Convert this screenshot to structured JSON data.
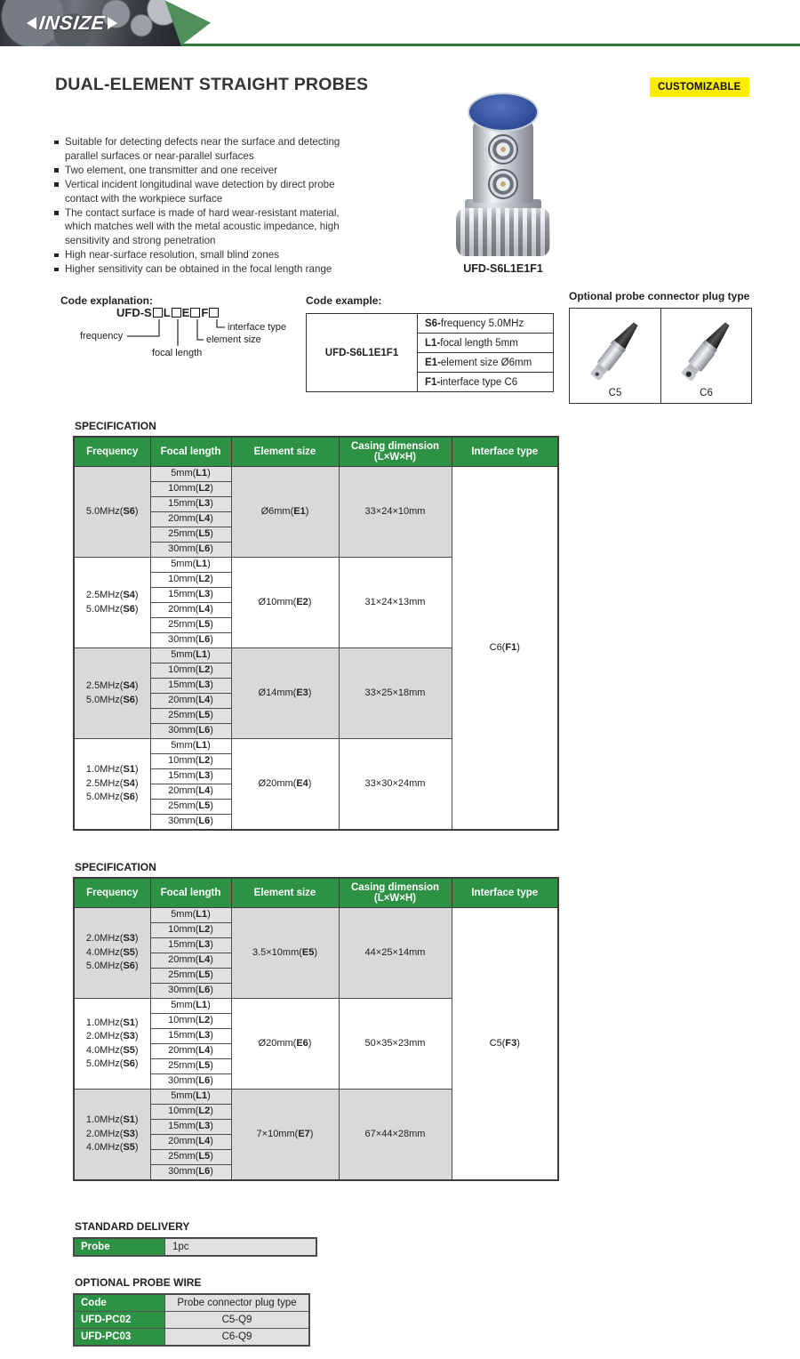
{
  "brand": {
    "logo_text": "INSIZE"
  },
  "page": {
    "title": "DUAL-ELEMENT STRAIGHT PROBES",
    "badge": "CUSTOMIZABLE"
  },
  "colors": {
    "table_header_green": "#2e9245",
    "header_band_green": "#4e8f5b",
    "rule_green": "#2c7a3a",
    "badge_yellow": "#fdee00",
    "shaded_cell_gray": "#d9d9d9"
  },
  "features": [
    "Suitable for detecting defects near the surface and detecting parallel surfaces or near-parallel surfaces",
    "Two element, one transmitter and one receiver",
    "Vertical incident longitudinal wave detection by direct probe contact with the workpiece surface",
    "The contact surface is made of hard wear-resistant material, which matches well with the metal acoustic impedance, high sensitivity and strong penetration",
    "High near-surface resolution, small blind zones",
    "Higher sensitivity can be obtained in the focal length range"
  ],
  "product": {
    "caption": "UFD-S6L1E1F1"
  },
  "code_explanation": {
    "label": "Code explanation:",
    "code_segments": [
      "UFD-S",
      "L",
      "E",
      "F"
    ],
    "legend": {
      "frequency": "frequency",
      "focal_length": "focal length",
      "element_size": "element size",
      "interface_type": "interface type"
    }
  },
  "code_example": {
    "label": "Code example:",
    "code": "UFD-S6L1E1F1",
    "items": [
      {
        "code": "S6",
        "desc": "frequency 5.0MHz"
      },
      {
        "code": "L1",
        "desc": "focal length 5mm"
      },
      {
        "code": "E1",
        "desc": "element size Ø6mm"
      },
      {
        "code": "F1",
        "desc": "interface type C6"
      }
    ]
  },
  "connector_plugs": {
    "title": "Optional probe connector plug type",
    "options": [
      {
        "label": "C5"
      },
      {
        "label": "C6"
      }
    ]
  },
  "spec1": {
    "label": "SPECIFICATION",
    "headers": [
      "Frequency",
      "Focal length",
      "Element size",
      "Casing dimension\n(L×W×H)",
      "Interface type"
    ],
    "focal_lengths": [
      "5mm(L1)",
      "10mm(L2)",
      "15mm(L3)",
      "20mm(L4)",
      "25mm(L5)",
      "30mm(L6)"
    ],
    "interface": "C6(F1)",
    "groups": [
      {
        "frequency": [
          "5.0MHz(S6)"
        ],
        "element": "Ø6mm(E1)",
        "casing": "33×24×10mm",
        "shaded": true
      },
      {
        "frequency": [
          "2.5MHz(S4)",
          "5.0MHz(S6)"
        ],
        "element": "Ø10mm(E2)",
        "casing": "31×24×13mm",
        "shaded": false
      },
      {
        "frequency": [
          "2.5MHz(S4)",
          "5.0MHz(S6)"
        ],
        "element": "Ø14mm(E3)",
        "casing": "33×25×18mm",
        "shaded": true
      },
      {
        "frequency": [
          "1.0MHz(S1)",
          "2.5MHz(S4)",
          "5.0MHz(S6)"
        ],
        "element": "Ø20mm(E4)",
        "casing": "33×30×24mm",
        "shaded": false
      }
    ]
  },
  "spec2": {
    "label": "SPECIFICATION",
    "headers": [
      "Frequency",
      "Focal length",
      "Element size",
      "Casing dimension\n(L×W×H)",
      "Interface type"
    ],
    "focal_lengths": [
      "5mm(L1)",
      "10mm(L2)",
      "15mm(L3)",
      "20mm(L4)",
      "25mm(L5)",
      "30mm(L6)"
    ],
    "interface": "C5(F3)",
    "groups": [
      {
        "frequency": [
          "2.0MHz(S3)",
          "4.0MHz(S5)",
          "5.0MHz(S6)"
        ],
        "element": "3.5×10mm(E5)",
        "casing": "44×25×14mm",
        "shaded": true
      },
      {
        "frequency": [
          "1.0MHz(S1)",
          "2.0MHz(S3)",
          "4.0MHz(S5)",
          "5.0MHz(S6)"
        ],
        "element": "Ø20mm(E6)",
        "casing": "50×35×23mm",
        "shaded": false
      },
      {
        "frequency": [
          "1.0MHz(S1)",
          "2.0MHz(S3)",
          "4.0MHz(S5)"
        ],
        "element": "7×10mm(E7)",
        "casing": "67×44×28mm",
        "shaded": true
      }
    ]
  },
  "standard_delivery": {
    "label": "STANDARD DELIVERY",
    "rows": [
      {
        "head": "Probe",
        "value": "1pc"
      }
    ]
  },
  "optional_probe_wire": {
    "label": "OPTIONAL PROBE WIRE",
    "headers": {
      "head": "Code",
      "value": "Probe connector plug type"
    },
    "rows": [
      {
        "head": "UFD-PC02",
        "value": "C5-Q9"
      },
      {
        "head": "UFD-PC03",
        "value": "C6-Q9"
      }
    ]
  }
}
